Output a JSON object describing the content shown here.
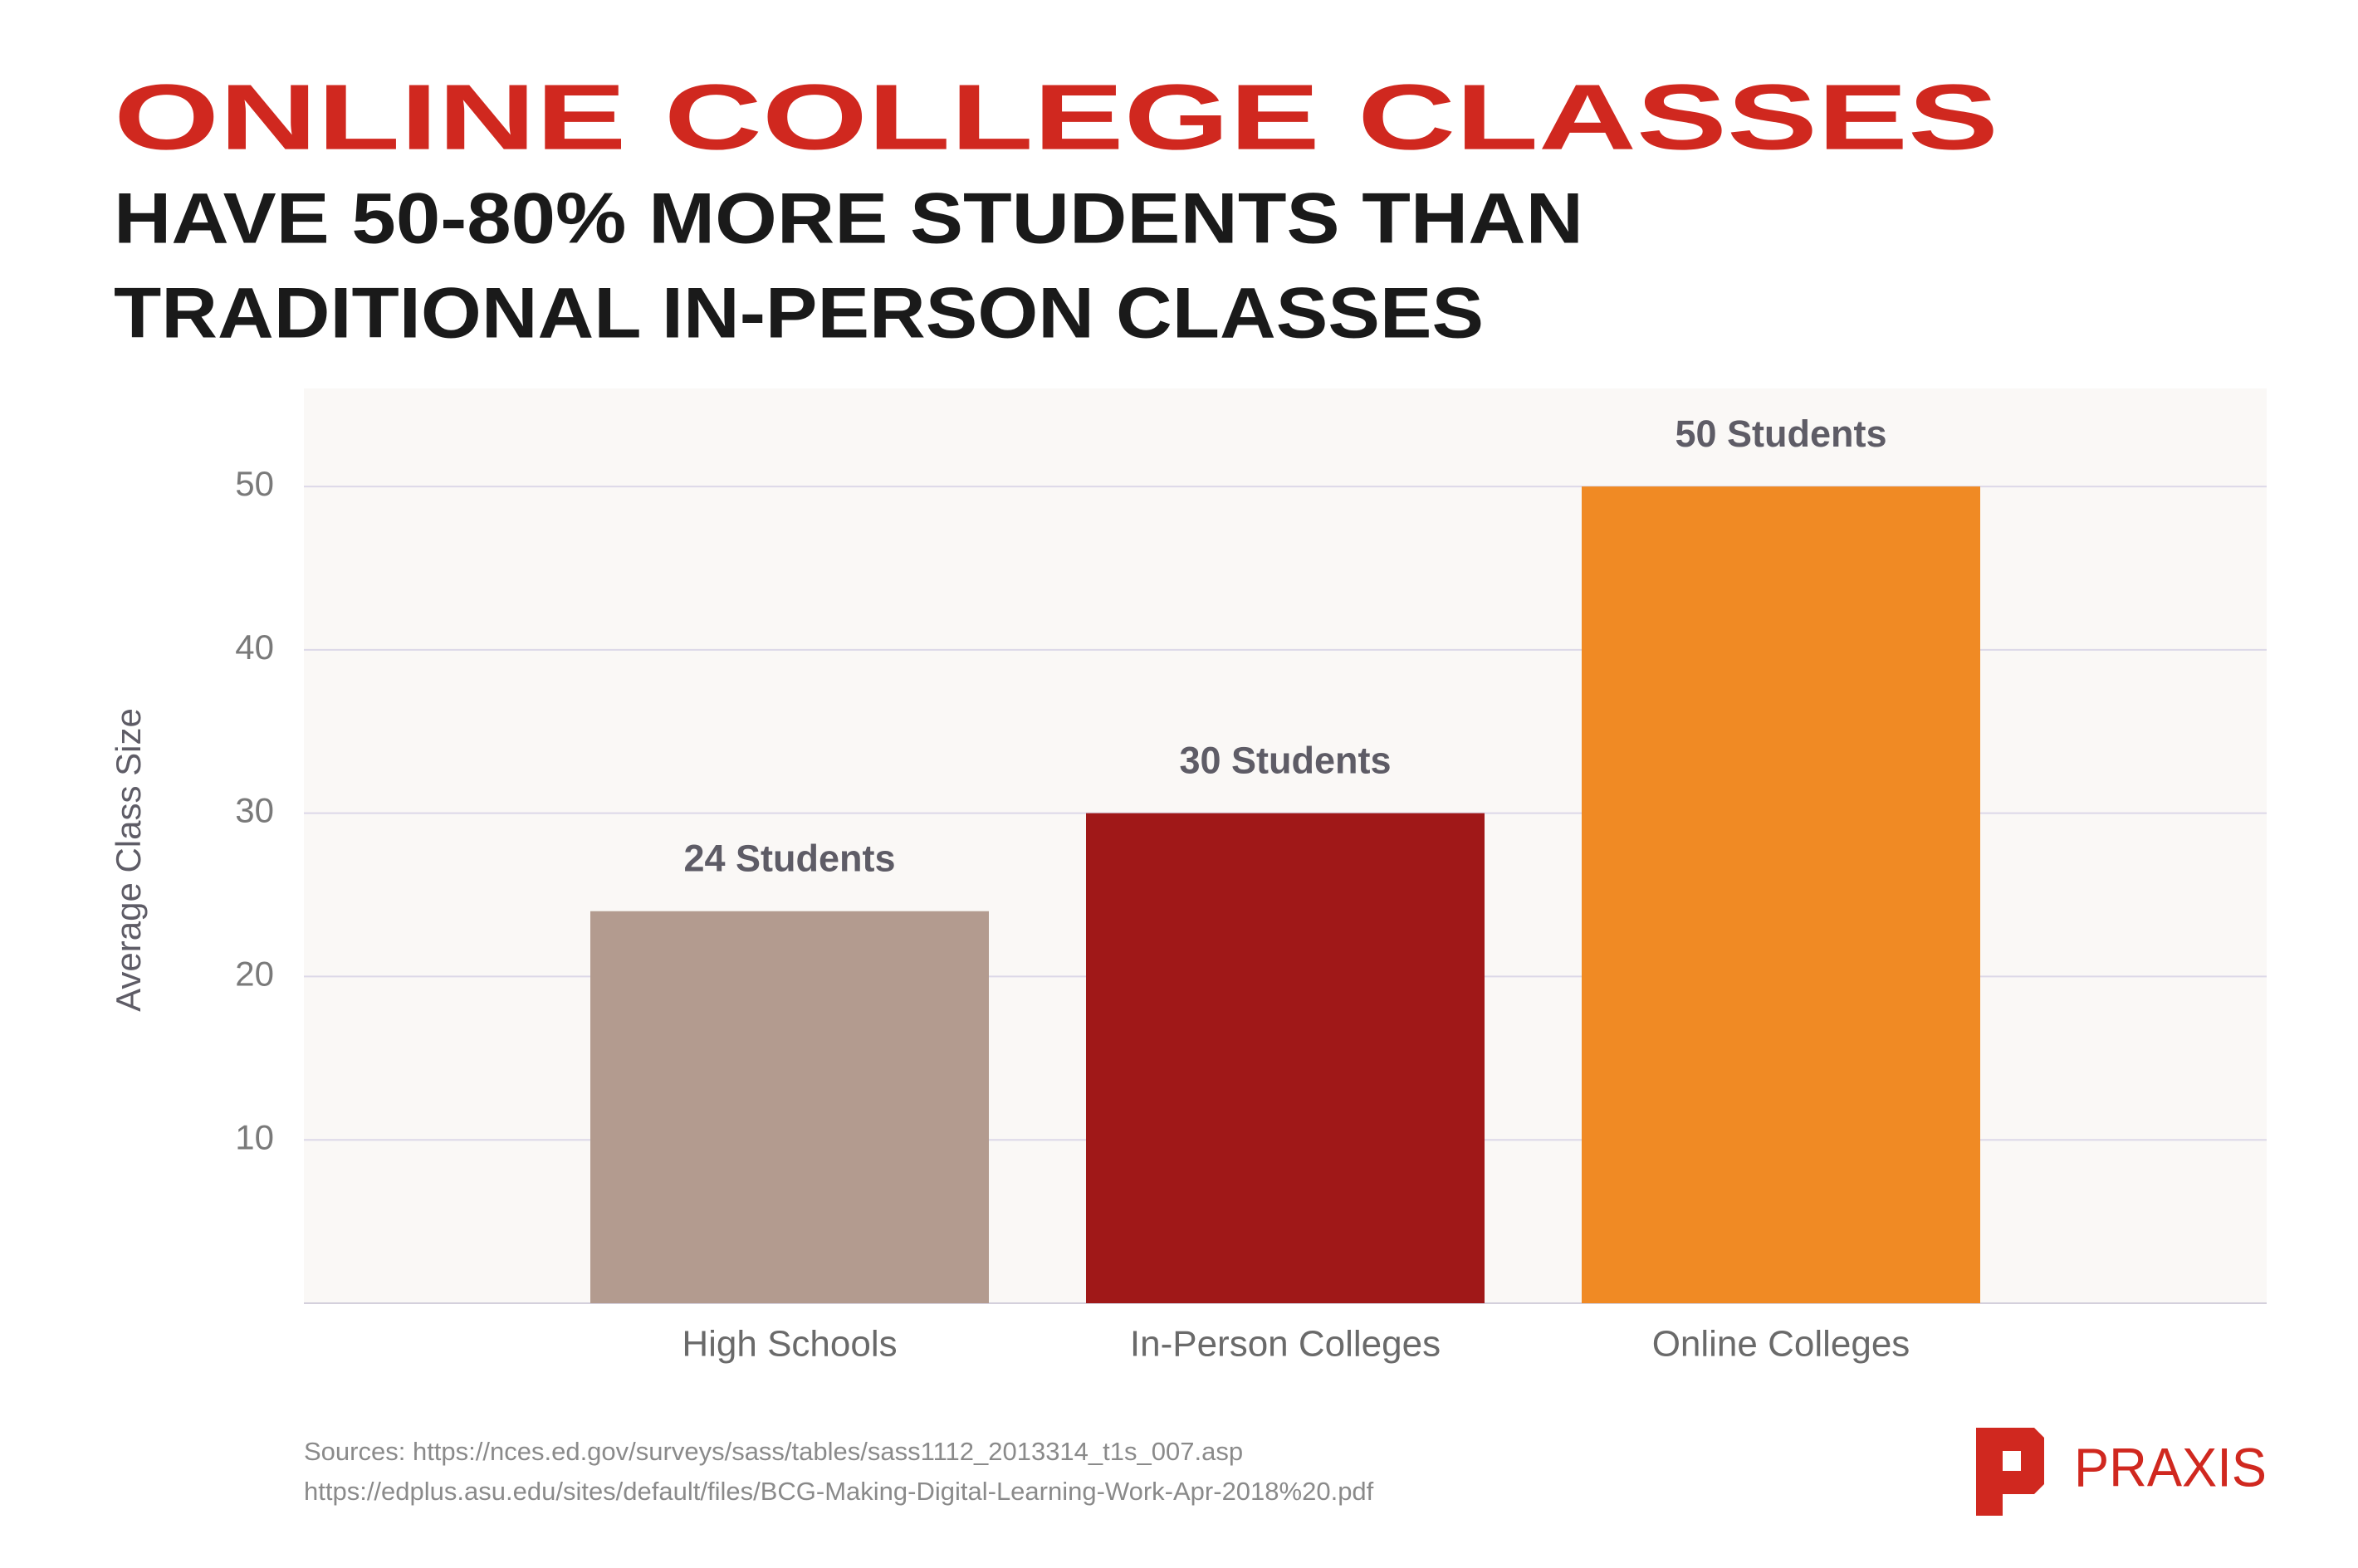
{
  "chart_data": {
    "type": "bar",
    "title": "ONLINE COLLEGE CLASSES",
    "subtitle": [
      "HAVE 50-80% MORE STUDENTS THAN",
      "TRADITIONAL IN-PERSON CLASSES"
    ],
    "y_label": "Average Class Size",
    "categories": [
      "High Schools",
      "In-Person Colleges",
      "Online Colleges"
    ],
    "values": [
      24,
      30,
      50
    ],
    "value_labels": [
      "24 Students",
      "30 Students",
      "50 Students"
    ],
    "colors": [
      "#b39b8f",
      "#a01818",
      "#f08a24"
    ],
    "ylim": [
      0,
      56
    ],
    "yticks": [
      10,
      20,
      30,
      40,
      50
    ],
    "grid": true
  },
  "sources": [
    "Sources: https://nces.ed.gov/surveys/sass/tables/sass1112_2013314_t1s_007.asp",
    "https://edplus.asu.edu/sites/default/files/BCG-Making-Digital-Learning-Work-Apr-2018%20.pdf"
  ],
  "logo": "PRAXIS"
}
